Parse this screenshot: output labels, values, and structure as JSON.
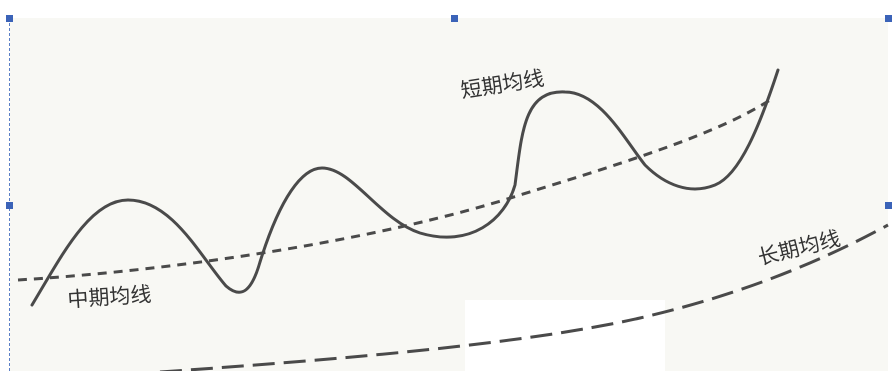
{
  "labels": {
    "short_ma": "短期均线",
    "mid_ma": "中期均线",
    "long_ma": "长期均线"
  },
  "colors": {
    "background": "#f8f8f4",
    "curve": "#4a4a4a",
    "selection": "#3b63b8"
  }
}
